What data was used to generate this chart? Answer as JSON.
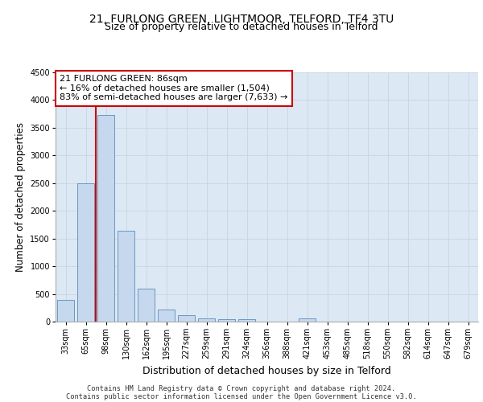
{
  "title_line1": "21, FURLONG GREEN, LIGHTMOOR, TELFORD, TF4 3TU",
  "title_line2": "Size of property relative to detached houses in Telford",
  "xlabel": "Distribution of detached houses by size in Telford",
  "ylabel": "Number of detached properties",
  "bar_labels": [
    "33sqm",
    "65sqm",
    "98sqm",
    "130sqm",
    "162sqm",
    "195sqm",
    "227sqm",
    "259sqm",
    "291sqm",
    "324sqm",
    "356sqm",
    "388sqm",
    "421sqm",
    "453sqm",
    "485sqm",
    "518sqm",
    "550sqm",
    "582sqm",
    "614sqm",
    "647sqm",
    "679sqm"
  ],
  "bar_values": [
    390,
    2500,
    3730,
    1640,
    590,
    220,
    110,
    55,
    45,
    40,
    0,
    0,
    55,
    0,
    0,
    0,
    0,
    0,
    0,
    0,
    0
  ],
  "bar_color": "#c5d8ee",
  "bar_edge_color": "#5b8db8",
  "annotation_text": "21 FURLONG GREEN: 86sqm\n← 16% of detached houses are smaller (1,504)\n83% of semi-detached houses are larger (7,633) →",
  "annotation_box_color": "#ffffff",
  "annotation_box_edge_color": "#cc0000",
  "vline_color": "#cc0000",
  "ylim": [
    0,
    4500
  ],
  "yticks": [
    0,
    500,
    1000,
    1500,
    2000,
    2500,
    3000,
    3500,
    4000,
    4500
  ],
  "grid_color": "#c8d4e0",
  "background_color": "#dce8f4",
  "footer_line1": "Contains HM Land Registry data © Crown copyright and database right 2024.",
  "footer_line2": "Contains public sector information licensed under the Open Government Licence v3.0.",
  "title_fontsize": 10,
  "subtitle_fontsize": 9,
  "tick_fontsize": 7,
  "ylabel_fontsize": 8.5,
  "xlabel_fontsize": 9,
  "annotation_fontsize": 8,
  "footer_fontsize": 6.2
}
